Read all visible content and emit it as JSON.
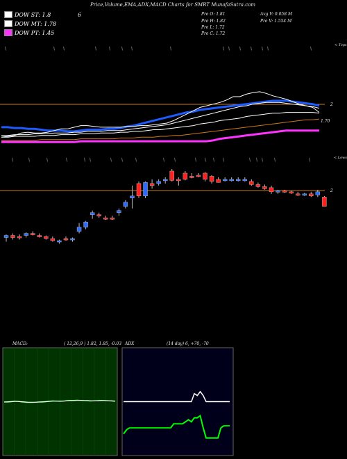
{
  "header": {
    "title": "Price,Volume,EMA,ADX,MACD Charts for SMRT MunafaSutra.com"
  },
  "legend": [
    {
      "label": "DOW ST: 1.8",
      "color": "#ffffff"
    },
    {
      "label": "DOW MT: 1.78",
      "color": "#ffffff"
    },
    {
      "label": "DOW PT: 1.45",
      "color": "#ff33ff"
    }
  ],
  "legend_extra": "6",
  "stats": {
    "pre_o": "Pre   O: 1.81",
    "pre_h": "Pre   H: 1.82",
    "pre_l": "Pre   L: 1.72",
    "pre_c": "Pre   C: 1.72",
    "avg_v": "Avg V: 0.058  M",
    "pre_v": "Pre   V: 1.554  M"
  },
  "labels": {
    "tops": "< Tops",
    "lows": "< Lows",
    "ema_level_1": "2",
    "ema_level_2": "1.70",
    "price_level": "2"
  },
  "macd": {
    "title": "MACD:",
    "params": "( 12,26,9 ) 1.82, 1.85, -0.03"
  },
  "adx": {
    "title": "ADX",
    "params": "(14  day) 6, +70, -70"
  },
  "colors": {
    "up": "#2d6bff",
    "down": "#ff2020",
    "ema_fast": "#1e5bff",
    "line_white": "#ffffff",
    "orange": "#cc7a1a",
    "magenta": "#ff33ff",
    "green": "#00ff00"
  },
  "chart_data": [
    {
      "type": "candlestick",
      "title": "Price chart",
      "level": 2,
      "candles": [
        {
          "o": 1.42,
          "h": 1.45,
          "l": 1.38,
          "c": 1.44,
          "dir": "up"
        },
        {
          "o": 1.44,
          "h": 1.46,
          "l": 1.4,
          "c": 1.42,
          "dir": "down"
        },
        {
          "o": 1.42,
          "h": 1.45,
          "l": 1.4,
          "c": 1.43,
          "dir": "down"
        },
        {
          "o": 1.44,
          "h": 1.47,
          "l": 1.42,
          "c": 1.46,
          "dir": "up"
        },
        {
          "o": 1.46,
          "h": 1.48,
          "l": 1.44,
          "c": 1.46,
          "dir": "down"
        },
        {
          "o": 1.44,
          "h": 1.46,
          "l": 1.42,
          "c": 1.43,
          "dir": "down"
        },
        {
          "o": 1.43,
          "h": 1.44,
          "l": 1.4,
          "c": 1.41,
          "dir": "down"
        },
        {
          "o": 1.41,
          "h": 1.43,
          "l": 1.38,
          "c": 1.39,
          "dir": "down"
        },
        {
          "o": 1.38,
          "h": 1.4,
          "l": 1.36,
          "c": 1.39,
          "dir": "up"
        },
        {
          "o": 1.4,
          "h": 1.43,
          "l": 1.39,
          "c": 1.41,
          "dir": "down"
        },
        {
          "o": 1.4,
          "h": 1.42,
          "l": 1.38,
          "c": 1.41,
          "dir": "up"
        },
        {
          "o": 1.48,
          "h": 1.56,
          "l": 1.46,
          "c": 1.52,
          "dir": "up"
        },
        {
          "o": 1.52,
          "h": 1.58,
          "l": 1.5,
          "c": 1.57,
          "dir": "up"
        },
        {
          "o": 1.64,
          "h": 1.68,
          "l": 1.6,
          "c": 1.66,
          "dir": "up"
        },
        {
          "o": 1.64,
          "h": 1.66,
          "l": 1.61,
          "c": 1.63,
          "dir": "down"
        },
        {
          "o": 1.61,
          "h": 1.63,
          "l": 1.59,
          "c": 1.6,
          "dir": "down"
        },
        {
          "o": 1.61,
          "h": 1.63,
          "l": 1.59,
          "c": 1.61,
          "dir": "down"
        },
        {
          "o": 1.66,
          "h": 1.7,
          "l": 1.63,
          "c": 1.68,
          "dir": "up"
        },
        {
          "o": 1.72,
          "h": 1.78,
          "l": 1.7,
          "c": 1.76,
          "dir": "up"
        },
        {
          "o": 1.8,
          "h": 1.92,
          "l": 1.7,
          "c": 1.82,
          "dir": "up"
        },
        {
          "o": 1.94,
          "h": 1.96,
          "l": 1.8,
          "c": 1.82,
          "dir": "down"
        },
        {
          "o": 1.82,
          "h": 1.96,
          "l": 1.8,
          "c": 1.95,
          "dir": "up"
        },
        {
          "o": 1.94,
          "h": 1.98,
          "l": 1.89,
          "c": 1.92,
          "dir": "down"
        },
        {
          "o": 1.94,
          "h": 1.98,
          "l": 1.92,
          "c": 1.96,
          "dir": "up"
        },
        {
          "o": 1.97,
          "h": 2.0,
          "l": 1.94,
          "c": 1.98,
          "dir": "up"
        },
        {
          "o": 2.06,
          "h": 2.08,
          "l": 1.96,
          "c": 1.97,
          "dir": "down"
        },
        {
          "o": 1.98,
          "h": 2.0,
          "l": 1.92,
          "c": 1.98,
          "dir": "down"
        },
        {
          "o": 2.04,
          "h": 2.06,
          "l": 1.97,
          "c": 1.98,
          "dir": "down"
        },
        {
          "o": 2.01,
          "h": 2.04,
          "l": 1.99,
          "c": 2.0,
          "dir": "down"
        },
        {
          "o": 2.02,
          "h": 2.04,
          "l": 2.0,
          "c": 2.01,
          "dir": "down"
        },
        {
          "o": 2.04,
          "h": 2.05,
          "l": 1.96,
          "c": 1.98,
          "dir": "down"
        },
        {
          "o": 2.01,
          "h": 2.02,
          "l": 1.94,
          "c": 1.96,
          "dir": "down"
        },
        {
          "o": 1.98,
          "h": 2.0,
          "l": 1.95,
          "c": 1.95,
          "dir": "down"
        },
        {
          "o": 1.98,
          "h": 2.0,
          "l": 1.96,
          "c": 1.97,
          "dir": "up"
        },
        {
          "o": 1.98,
          "h": 2.0,
          "l": 1.96,
          "c": 1.98,
          "dir": "up"
        },
        {
          "o": 1.98,
          "h": 2.0,
          "l": 1.96,
          "c": 1.98,
          "dir": "up"
        },
        {
          "o": 1.98,
          "h": 2.0,
          "l": 1.96,
          "c": 1.98,
          "dir": "up"
        },
        {
          "o": 1.96,
          "h": 1.98,
          "l": 1.92,
          "c": 1.93,
          "dir": "down"
        },
        {
          "o": 1.93,
          "h": 1.95,
          "l": 1.9,
          "c": 1.91,
          "dir": "down"
        },
        {
          "o": 1.91,
          "h": 1.93,
          "l": 1.88,
          "c": 1.89,
          "dir": "down"
        },
        {
          "o": 1.9,
          "h": 1.92,
          "l": 1.84,
          "c": 1.86,
          "dir": "down"
        },
        {
          "o": 1.86,
          "h": 1.88,
          "l": 1.84,
          "c": 1.87,
          "dir": "up"
        },
        {
          "o": 1.87,
          "h": 1.88,
          "l": 1.85,
          "c": 1.86,
          "dir": "down"
        },
        {
          "o": 1.86,
          "h": 1.87,
          "l": 1.84,
          "c": 1.85,
          "dir": "down"
        },
        {
          "o": 1.84,
          "h": 1.86,
          "l": 1.82,
          "c": 1.83,
          "dir": "down"
        },
        {
          "o": 1.83,
          "h": 1.85,
          "l": 1.82,
          "c": 1.84,
          "dir": "up"
        },
        {
          "o": 1.84,
          "h": 1.86,
          "l": 1.81,
          "c": 1.82,
          "dir": "down"
        },
        {
          "o": 1.83,
          "h": 1.88,
          "l": 1.81,
          "c": 1.86,
          "dir": "up"
        },
        {
          "o": 1.81,
          "h": 1.82,
          "l": 1.72,
          "c": 1.72,
          "dir": "down"
        }
      ]
    },
    {
      "type": "line",
      "title": "EMA",
      "ylim": [
        1.35,
        2.15
      ],
      "series": [
        {
          "color": "#1e5bff",
          "values": [
            1.62,
            1.62,
            1.61,
            1.61,
            1.6,
            1.6,
            1.59,
            1.58,
            1.58,
            1.58,
            1.57,
            1.57,
            1.58,
            1.59,
            1.59,
            1.59,
            1.6,
            1.6,
            1.61,
            1.63,
            1.64,
            1.66,
            1.68,
            1.7,
            1.72,
            1.74,
            1.76,
            1.78,
            1.8,
            1.81,
            1.83,
            1.84,
            1.85,
            1.86,
            1.87,
            1.88,
            1.89,
            1.9,
            1.91,
            1.92,
            1.93,
            1.94,
            1.94,
            1.94,
            1.93,
            1.92,
            1.91,
            1.9,
            1.88
          ]
        },
        {
          "color": "#ffffff",
          "values": [
            1.5,
            1.51,
            1.52,
            1.55,
            1.56,
            1.55,
            1.55,
            1.56,
            1.58,
            1.6,
            1.6,
            1.62,
            1.64,
            1.64,
            1.63,
            1.62,
            1.62,
            1.62,
            1.62,
            1.63,
            1.63,
            1.64,
            1.64,
            1.65,
            1.66,
            1.67,
            1.7,
            1.74,
            1.78,
            1.82,
            1.86,
            1.88,
            1.9,
            1.92,
            1.95,
            1.99,
            1.99,
            2.02,
            2.04,
            2.05,
            2.03,
            2.0,
            1.98,
            1.96,
            1.93,
            1.9,
            1.88,
            1.86,
            1.8
          ]
        },
        {
          "color": "#ffffff",
          "values": [
            1.52,
            1.52,
            1.53,
            1.53,
            1.53,
            1.54,
            1.54,
            1.54,
            1.55,
            1.55,
            1.55,
            1.56,
            1.56,
            1.57,
            1.57,
            1.57,
            1.58,
            1.58,
            1.58,
            1.59,
            1.6,
            1.61,
            1.62,
            1.63,
            1.64,
            1.65,
            1.67,
            1.69,
            1.71,
            1.73,
            1.75,
            1.77,
            1.79,
            1.81,
            1.83,
            1.85,
            1.87,
            1.88,
            1.9,
            1.91,
            1.92,
            1.92,
            1.92,
            1.91,
            1.9,
            1.89,
            1.88,
            1.87,
            1.85
          ]
        },
        {
          "color": "#ffffff",
          "values": [
            1.5,
            1.5,
            1.51,
            1.51,
            1.51,
            1.51,
            1.52,
            1.52,
            1.52,
            1.53,
            1.53,
            1.53,
            1.54,
            1.54,
            1.54,
            1.55,
            1.55,
            1.55,
            1.56,
            1.56,
            1.57,
            1.57,
            1.58,
            1.59,
            1.59,
            1.6,
            1.61,
            1.62,
            1.63,
            1.64,
            1.66,
            1.67,
            1.68,
            1.7,
            1.71,
            1.72,
            1.73,
            1.75,
            1.76,
            1.77,
            1.78,
            1.79,
            1.79,
            1.8,
            1.8,
            1.8,
            1.8,
            1.8,
            1.79
          ]
        },
        {
          "color": "#cc7a1a",
          "values": [
            1.46,
            1.46,
            1.46,
            1.46,
            1.46,
            1.46,
            1.47,
            1.47,
            1.47,
            1.47,
            1.47,
            1.47,
            1.48,
            1.48,
            1.48,
            1.48,
            1.48,
            1.48,
            1.49,
            1.49,
            1.49,
            1.5,
            1.5,
            1.5,
            1.51,
            1.51,
            1.52,
            1.52,
            1.53,
            1.54,
            1.55,
            1.56,
            1.57,
            1.58,
            1.59,
            1.6,
            1.61,
            1.62,
            1.63,
            1.64,
            1.65,
            1.66,
            1.67,
            1.68,
            1.69,
            1.7,
            1.71,
            1.71,
            1.72
          ]
        },
        {
          "color": "#ff33ff",
          "values": [
            1.44,
            1.44,
            1.44,
            1.44,
            1.44,
            1.44,
            1.44,
            1.44,
            1.44,
            1.44,
            1.44,
            1.44,
            1.45,
            1.45,
            1.45,
            1.45,
            1.45,
            1.45,
            1.45,
            1.45,
            1.45,
            1.45,
            1.45,
            1.45,
            1.45,
            1.45,
            1.45,
            1.45,
            1.45,
            1.45,
            1.45,
            1.45,
            1.46,
            1.48,
            1.49,
            1.5,
            1.51,
            1.52,
            1.53,
            1.54,
            1.55,
            1.56,
            1.57,
            1.58,
            1.58,
            1.58,
            1.58,
            1.58,
            1.58
          ]
        }
      ]
    },
    {
      "type": "line",
      "title": "MACD",
      "ylim": [
        -1,
        1
      ],
      "series": [
        {
          "color": "#00ff00",
          "values": [
            0,
            0.01,
            0.02,
            0.03,
            0.02,
            0,
            -0.01,
            -0.02,
            -0.02,
            -0.01,
            0,
            0.01,
            0.02,
            0.03,
            0.04,
            0.03,
            0.02,
            0.03,
            0.05,
            0.06,
            0.06,
            0.07,
            0.06,
            0.05,
            0.04,
            0.03,
            0.04,
            0.05,
            0.06,
            0.05,
            0.04,
            0.03,
            0.02
          ]
        },
        {
          "color": "#ffffff",
          "values": [
            0,
            0,
            0.01,
            0.02,
            0.02,
            0.01,
            0,
            -0.01,
            -0.01,
            -0.01,
            0,
            0,
            0.01,
            0.02,
            0.03,
            0.03,
            0.03,
            0.03,
            0.04,
            0.05,
            0.05,
            0.06,
            0.06,
            0.05,
            0.05,
            0.04,
            0.04,
            0.04,
            0.05,
            0.05,
            0.04,
            0.04,
            0.03
          ]
        }
      ]
    },
    {
      "type": "line",
      "title": "ADX",
      "ylim": [
        0,
        100
      ],
      "series": [
        {
          "color": "#00ff00",
          "values": [
            18,
            22,
            24,
            24,
            24,
            24,
            24,
            24,
            24,
            24,
            24,
            24,
            24,
            24,
            24,
            24,
            24,
            28,
            28,
            28,
            28,
            30,
            32,
            30,
            34,
            34,
            36,
            24,
            14,
            14,
            14,
            14,
            14,
            24,
            26,
            26,
            26
          ]
        },
        {
          "color": "#ffffff",
          "values": [
            50,
            50,
            50,
            50,
            50,
            50,
            50,
            50,
            50,
            50,
            50,
            50,
            50,
            50,
            50,
            50,
            50,
            50,
            50,
            50,
            50,
            50,
            50,
            50,
            58,
            56,
            60,
            56,
            50,
            50,
            50,
            50,
            50,
            50,
            50,
            50,
            50
          ]
        }
      ]
    }
  ]
}
